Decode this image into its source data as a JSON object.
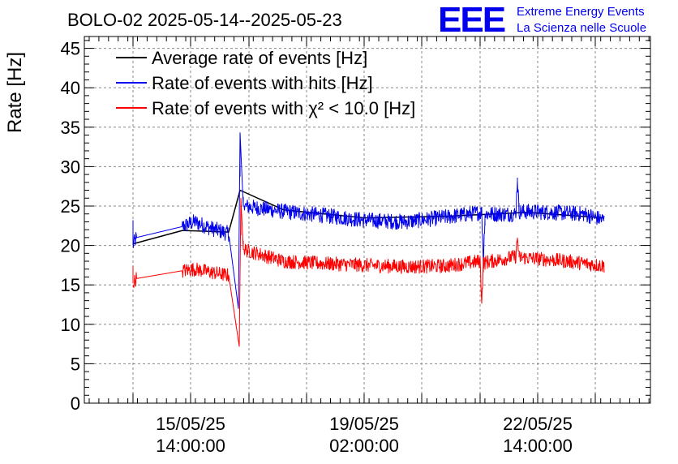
{
  "header": {
    "title": "BOLO-02 2025-05-14--2025-05-23",
    "logo_letters": "EEE",
    "logo_line1": "Extreme Energy Events",
    "logo_line2": "La Scienza nelle Scuole"
  },
  "chart_data": {
    "type": "line",
    "title": "BOLO-02 2025-05-14--2025-05-23",
    "xlabel": "",
    "ylabel": "Rate [Hz]",
    "ylim": [
      0,
      46.5
    ],
    "y_ticks": [
      0,
      5,
      10,
      15,
      20,
      25,
      30,
      35,
      40,
      45
    ],
    "x_tick_labels": [
      {
        "date": "15/05/25",
        "time": "14:00:00"
      },
      {
        "date": "19/05/25",
        "time": "02:00:00"
      },
      {
        "date": "22/05/25",
        "time": "14:00:00"
      }
    ],
    "grid": true,
    "legend_position": "top-left",
    "legend": [
      {
        "label": "Average rate of events [Hz]",
        "color": "#000000"
      },
      {
        "label": "Rate of events with hits [Hz]",
        "color": "#0000ee"
      },
      {
        "label": "Rate of events with χ² < 10.0 [Hz]",
        "color": "#ff0000"
      }
    ],
    "series": [
      {
        "name": "Average rate of events [Hz]",
        "color": "#000000",
        "points": [
          [
            164,
            20.2
          ],
          [
            225,
            21.9
          ],
          [
            282,
            21.7
          ],
          [
            296,
            27.0
          ],
          [
            350,
            24.5
          ],
          [
            450,
            23.5
          ],
          [
            550,
            23.7
          ],
          [
            650,
            24.2
          ],
          [
            745,
            23.5
          ]
        ]
      },
      {
        "name": "Rate of events with hits [Hz]",
        "color": "#0000ee",
        "noise": 1.0,
        "points": [
          [
            164,
            20.0
          ],
          [
            168,
            21.0
          ],
          [
            225,
            22.4
          ],
          [
            240,
            23.0
          ],
          [
            260,
            22.2
          ],
          [
            282,
            21.5
          ],
          [
            294,
            12.0
          ],
          [
            296,
            34.3
          ],
          [
            300,
            25.0
          ],
          [
            350,
            24.3
          ],
          [
            400,
            23.8
          ],
          [
            450,
            23.2
          ],
          [
            500,
            23.0
          ],
          [
            550,
            23.6
          ],
          [
            594,
            24.2
          ],
          [
            596,
            18.0
          ],
          [
            598,
            24.0
          ],
          [
            636,
            24.0
          ],
          [
            638,
            28.6
          ],
          [
            640,
            24.3
          ],
          [
            680,
            24.2
          ],
          [
            720,
            24.0
          ],
          [
            745,
            23.2
          ]
        ]
      },
      {
        "name": "Rate of events with χ² < 10.0 [Hz]",
        "color": "#ff0000",
        "noise": 0.9,
        "points": [
          [
            164,
            15.2
          ],
          [
            168,
            15.8
          ],
          [
            225,
            16.8
          ],
          [
            240,
            17.0
          ],
          [
            260,
            16.6
          ],
          [
            282,
            16.2
          ],
          [
            295,
            7.2
          ],
          [
            297,
            26.0
          ],
          [
            300,
            19.5
          ],
          [
            350,
            18.0
          ],
          [
            400,
            17.7
          ],
          [
            450,
            17.5
          ],
          [
            500,
            17.3
          ],
          [
            550,
            17.4
          ],
          [
            592,
            18.0
          ],
          [
            594,
            13.0
          ],
          [
            596,
            17.8
          ],
          [
            636,
            18.6
          ],
          [
            638,
            21.0
          ],
          [
            640,
            18.5
          ],
          [
            700,
            18.0
          ],
          [
            745,
            17.4
          ]
        ]
      }
    ]
  }
}
